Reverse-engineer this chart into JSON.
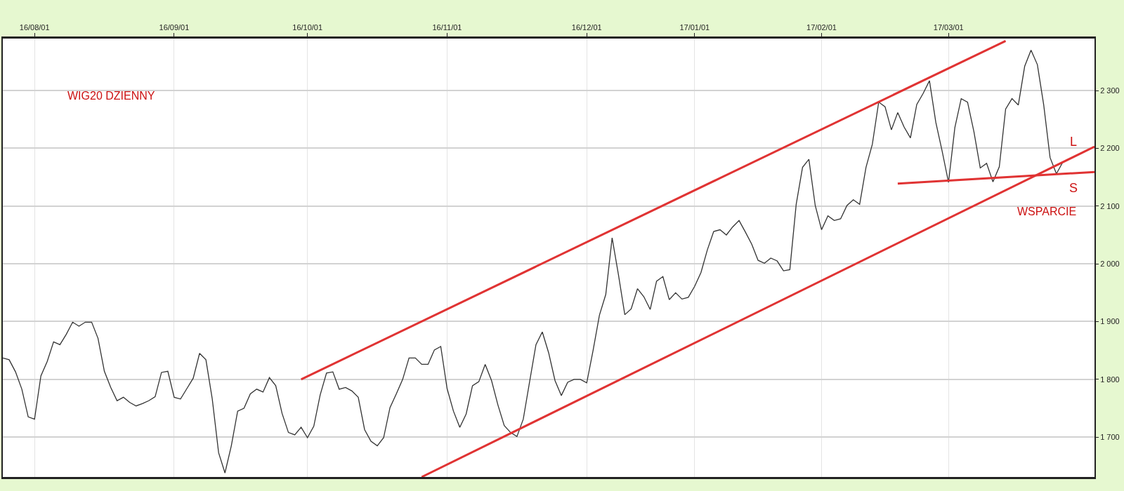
{
  "chart_data": {
    "type": "line",
    "annotations": [
      "WIG20 DZIENNY",
      "L",
      "S",
      "WSPARCIE"
    ],
    "categories": [
      null,
      null,
      null,
      null,
      null,
      "16/08/01",
      null,
      null,
      null,
      null,
      null,
      null,
      null,
      null,
      null,
      null,
      null,
      null,
      null,
      null,
      null,
      null,
      null,
      null,
      null,
      null,
      null,
      "16/09/01",
      null,
      null,
      null,
      null,
      null,
      null,
      null,
      null,
      null,
      null,
      null,
      null,
      null,
      null,
      null,
      null,
      null,
      null,
      null,
      null,
      "16/10/01",
      null,
      null,
      null,
      null,
      null,
      null,
      null,
      null,
      null,
      null,
      null,
      null,
      null,
      null,
      null,
      null,
      null,
      null,
      null,
      null,
      null,
      "16/11/01",
      null,
      null,
      null,
      null,
      null,
      null,
      null,
      null,
      null,
      null,
      null,
      null,
      null,
      null,
      null,
      null,
      null,
      null,
      null,
      null,
      null,
      "16/12/01",
      null,
      null,
      null,
      null,
      null,
      null,
      null,
      null,
      null,
      null,
      null,
      null,
      null,
      null,
      null,
      null,
      "17/01/01",
      null,
      null,
      null,
      null,
      null,
      null,
      null,
      null,
      null,
      null,
      null,
      null,
      null,
      null,
      null,
      null,
      null,
      null,
      null,
      "17/02/01",
      null,
      null,
      null,
      null,
      null,
      null,
      null,
      null,
      null,
      null,
      null,
      null,
      null,
      null,
      null,
      null,
      null,
      null,
      null,
      "17/03/01",
      null,
      null,
      null,
      null,
      null,
      null,
      null,
      null,
      null,
      null,
      null,
      null,
      null,
      null,
      null,
      null,
      null,
      null,
      null,
      null,
      null,
      null,
      null
    ],
    "series": [
      {
        "color": "#333333",
        "values": [
          1837,
          1834,
          1813,
          1783,
          1735,
          1731,
          1806,
          1831,
          1865,
          1860,
          1878,
          1899,
          1892,
          1899,
          1899,
          1871,
          1814,
          1786,
          1763,
          1769,
          1760,
          1754,
          1758,
          1763,
          1770,
          1812,
          1814,
          1769,
          1766,
          1784,
          1802,
          1845,
          1834,
          1766,
          1673,
          1638,
          1685,
          1745,
          1750,
          1775,
          1783,
          1778,
          1803,
          1789,
          1741,
          1708,
          1704,
          1717,
          1699,
          1719,
          1773,
          1811,
          1813,
          1783,
          1786,
          1780,
          1769,
          1713,
          1693,
          1685,
          1699,
          1751,
          1775,
          1800,
          1837,
          1837,
          1826,
          1826,
          1851,
          1857,
          1784,
          1745,
          1717,
          1740,
          1789,
          1796,
          1826,
          1798,
          1756,
          1720,
          1708,
          1701,
          1731,
          1796,
          1860,
          1882,
          1846,
          1798,
          1772,
          1795,
          1800,
          1800,
          1794,
          1850,
          1911,
          1947,
          2045,
          1981,
          1912,
          1922,
          1957,
          1943,
          1921,
          1970,
          1978,
          1938,
          1950,
          1939,
          1942,
          1961,
          1985,
          2024,
          2056,
          2059,
          2050,
          2064,
          2075,
          2055,
          2034,
          2006,
          2001,
          2010,
          2005,
          1988,
          1990,
          2103,
          2167,
          2181,
          2101,
          2059,
          2083,
          2075,
          2078,
          2101,
          2111,
          2103,
          2167,
          2207,
          2280,
          2272,
          2232,
          2262,
          2237,
          2218,
          2276,
          2295,
          2317,
          2245,
          2195,
          2141,
          2236,
          2286,
          2280,
          2229,
          2166,
          2174,
          2142,
          2168,
          2268,
          2286,
          2275,
          2342,
          2370,
          2345,
          2275,
          2184,
          2156,
          2176,
          null,
          null,
          null,
          null,
          null
        ]
      },
      {
        "type": "line",
        "color": "#e03333",
        "values": [
          null,
          null,
          null,
          null,
          null,
          null,
          null,
          null,
          null,
          null,
          null,
          null,
          null,
          null,
          null,
          null,
          null,
          null,
          null,
          null,
          null,
          null,
          null,
          null,
          null,
          null,
          null,
          null,
          null,
          null,
          null,
          null,
          null,
          null,
          null,
          null,
          null,
          null,
          null,
          null,
          null,
          null,
          null,
          null,
          null,
          null,
          null,
          1800,
          null,
          null,
          null,
          null,
          null,
          null,
          null,
          null,
          null,
          null,
          null,
          null,
          null,
          null,
          null,
          null,
          null,
          null,
          null,
          null,
          null,
          null,
          null,
          null,
          null,
          null,
          null,
          null,
          null,
          null,
          null,
          null,
          null,
          null,
          null,
          null,
          null,
          null,
          null,
          null,
          null,
          null,
          null,
          null,
          null,
          null,
          null,
          null,
          null,
          null,
          null,
          null,
          null,
          null,
          null,
          null,
          null,
          null,
          null,
          null,
          null,
          null,
          null,
          null,
          null,
          null,
          null,
          null,
          null,
          null,
          null,
          null,
          null,
          null,
          null,
          null,
          null,
          null,
          null,
          null,
          null,
          null,
          null,
          null,
          null,
          null,
          null,
          null,
          null,
          null,
          null,
          null,
          null,
          null,
          null,
          null,
          null,
          null,
          null,
          null,
          null,
          null,
          null,
          null,
          null,
          null,
          null,
          null,
          null,
          null,
          2386,
          null,
          null,
          null,
          null,
          null,
          null,
          null,
          null,
          null,
          null,
          null,
          null,
          null,
          null
        ]
      },
      {
        "type": "line",
        "color": "#e03333",
        "values": [
          null,
          null,
          null,
          null,
          null,
          null,
          null,
          null,
          null,
          null,
          null,
          null,
          null,
          null,
          null,
          null,
          null,
          null,
          null,
          null,
          null,
          null,
          null,
          null,
          null,
          null,
          null,
          null,
          null,
          null,
          null,
          null,
          null,
          null,
          null,
          null,
          null,
          null,
          null,
          null,
          null,
          null,
          null,
          null,
          null,
          null,
          null,
          null,
          null,
          null,
          null,
          null,
          null,
          null,
          null,
          null,
          null,
          null,
          null,
          null,
          null,
          null,
          null,
          null,
          null,
          null,
          1631,
          null,
          null,
          null,
          null,
          null,
          null,
          null,
          null,
          null,
          null,
          null,
          null,
          null,
          null,
          null,
          null,
          null,
          null,
          null,
          null,
          null,
          null,
          null,
          null,
          null,
          null,
          null,
          null,
          null,
          null,
          null,
          null,
          null,
          null,
          null,
          null,
          null,
          null,
          null,
          null,
          null,
          null,
          null,
          null,
          null,
          null,
          null,
          null,
          null,
          null,
          null,
          null,
          null,
          null,
          null,
          null,
          null,
          null,
          null,
          null,
          null,
          null,
          null,
          null,
          null,
          null,
          null,
          null,
          null,
          null,
          null,
          null,
          null,
          null,
          null,
          null,
          null,
          null,
          null,
          null,
          null,
          null,
          null,
          null,
          null,
          null,
          null,
          null,
          null,
          null,
          null,
          null,
          null,
          null,
          null,
          null,
          null,
          null,
          null,
          null,
          null,
          null,
          null,
          null,
          null,
          2203
        ]
      },
      {
        "type": "line",
        "color": "#e03333",
        "values": [
          null,
          null,
          null,
          null,
          null,
          null,
          null,
          null,
          null,
          null,
          null,
          null,
          null,
          null,
          null,
          null,
          null,
          null,
          null,
          null,
          null,
          null,
          null,
          null,
          null,
          null,
          null,
          null,
          null,
          null,
          null,
          null,
          null,
          null,
          null,
          null,
          null,
          null,
          null,
          null,
          null,
          null,
          null,
          null,
          null,
          null,
          null,
          null,
          null,
          null,
          null,
          null,
          null,
          null,
          null,
          null,
          null,
          null,
          null,
          null,
          null,
          null,
          null,
          null,
          null,
          null,
          null,
          null,
          null,
          null,
          null,
          null,
          null,
          null,
          null,
          null,
          null,
          null,
          null,
          null,
          null,
          null,
          null,
          null,
          null,
          null,
          null,
          null,
          null,
          null,
          null,
          null,
          null,
          null,
          null,
          null,
          null,
          null,
          null,
          null,
          null,
          null,
          null,
          null,
          null,
          null,
          null,
          null,
          null,
          null,
          null,
          null,
          null,
          null,
          null,
          null,
          null,
          null,
          null,
          null,
          null,
          null,
          null,
          null,
          null,
          null,
          null,
          null,
          null,
          null,
          null,
          null,
          null,
          null,
          null,
          null,
          null,
          null,
          null,
          null,
          null,
          2139,
          null,
          null,
          null,
          null,
          null,
          null,
          null,
          null,
          null,
          null,
          null,
          null,
          null,
          null,
          null,
          null,
          null,
          null,
          null,
          null,
          null,
          null,
          null,
          null,
          null,
          null,
          null,
          null,
          null,
          null,
          2159
        ]
      }
    ],
    "ylim": [
      1631,
      2390
    ],
    "yticks": [
      {
        "value": 1700,
        "label": "1 700"
      },
      {
        "value": 1800,
        "label": "1 800"
      },
      {
        "value": 1900,
        "label": "1 900"
      },
      {
        "value": 2000,
        "label": "2 000"
      },
      {
        "value": 2100,
        "label": "2 100"
      },
      {
        "value": 2200,
        "label": "2 200"
      },
      {
        "value": 2300,
        "label": "2 300"
      }
    ],
    "grid": true,
    "marker": "none",
    "line_style": "solid"
  }
}
